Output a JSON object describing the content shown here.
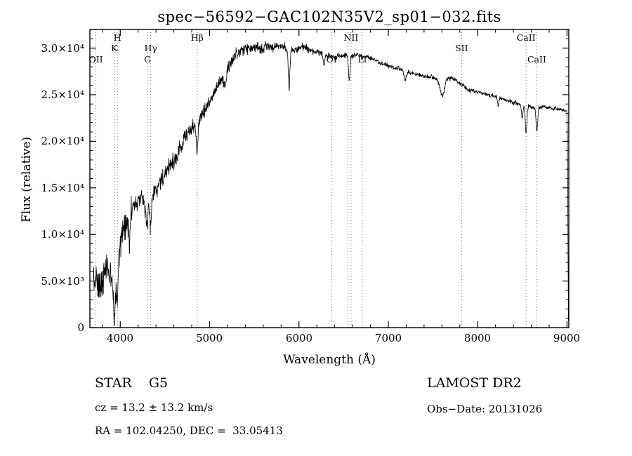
{
  "title": "spec−56592−GAC102N35V2_sp01−032.fits",
  "xlabel": "Wavelength (Å)",
  "ylabel": "Flux (relative)",
  "annotations": {
    "object_class": "STAR    G5",
    "survey": "LAMOST DR2",
    "cz": "cz = 13.2 ± 13.2 km/s",
    "obs_date": "Obs−Date: 20131026",
    "radec": "RA = 102.04250, DEC =  33.05413"
  },
  "chart_data": {
    "type": "line",
    "title": "spec−56592−GAC102N35V2_sp01−032.fits",
    "xlabel": "Wavelength (Å)",
    "ylabel": "Flux (relative)",
    "xlim": [
      3660,
      9020
    ],
    "ylim": [
      0,
      32000
    ],
    "grid": false,
    "line_color": "#000000",
    "dotted_line_color": "#777777",
    "background": "#ffffff",
    "x_ticks": {
      "values": [
        4000,
        5000,
        6000,
        7000,
        8000,
        9000
      ],
      "labels": [
        "4000",
        "5000",
        "6000",
        "7000",
        "8000",
        "9000"
      ]
    },
    "y_ticks": {
      "values": [
        0,
        5000,
        10000,
        15000,
        20000,
        25000,
        30000
      ],
      "labels": [
        "0",
        "5.0×10³",
        "1.0×10⁴",
        "1.5×10⁴",
        "2.0×10⁴",
        "2.5×10⁴",
        "3.0×10⁴"
      ]
    },
    "spectral_lines": [
      {
        "label": "OII",
        "wl": 3727,
        "row": 3
      },
      {
        "label": "K",
        "wl": 3933,
        "row": 2
      },
      {
        "label": "H",
        "wl": 3968,
        "row": 1
      },
      {
        "label": "G",
        "wl": 4305,
        "row": 3
      },
      {
        "label": "Hγ",
        "wl": 4341,
        "row": 2
      },
      {
        "label": "Hβ",
        "wl": 4861,
        "row": 1
      },
      {
        "label": "OI",
        "wl": 6365,
        "row": 3
      },
      {
        "label": "NII",
        "wl": 6583,
        "row": 1
      },
      {
        "label": "Li",
        "wl": 6708,
        "row": 3
      },
      {
        "label": "SII",
        "wl": 7820,
        "row": 2
      },
      {
        "label": "CaII",
        "wl": 8542,
        "row": 1
      },
      {
        "label": "CaII",
        "wl": 8662,
        "row": 3
      }
    ],
    "extra_dotted_lines": [
      6548
    ],
    "continuum_points": [
      [
        3700,
        4600
      ],
      [
        3730,
        5400
      ],
      [
        3760,
        3900
      ],
      [
        3790,
        4600
      ],
      [
        3820,
        5800
      ],
      [
        3850,
        6600
      ],
      [
        3880,
        5400
      ],
      [
        3910,
        5000
      ],
      [
        3940,
        4600
      ],
      [
        3960,
        5200
      ],
      [
        3985,
        7200
      ],
      [
        4010,
        9800
      ],
      [
        4040,
        10800
      ],
      [
        4080,
        11600
      ],
      [
        4120,
        12300
      ],
      [
        4160,
        12900
      ],
      [
        4200,
        13500
      ],
      [
        4250,
        14000
      ],
      [
        4300,
        13600
      ],
      [
        4360,
        14400
      ],
      [
        4420,
        15400
      ],
      [
        4480,
        16300
      ],
      [
        4540,
        17000
      ],
      [
        4600,
        17900
      ],
      [
        4660,
        19000
      ],
      [
        4720,
        20300
      ],
      [
        4780,
        21200
      ],
      [
        4840,
        21700
      ],
      [
        4900,
        22500
      ],
      [
        4960,
        23600
      ],
      [
        5020,
        24600
      ],
      [
        5080,
        25800
      ],
      [
        5140,
        26800
      ],
      [
        5200,
        27800
      ],
      [
        5260,
        28800
      ],
      [
        5320,
        29600
      ],
      [
        5380,
        29900
      ],
      [
        5440,
        30000
      ],
      [
        5500,
        30100
      ],
      [
        5560,
        29900
      ],
      [
        5620,
        30000
      ],
      [
        5680,
        30100
      ],
      [
        5740,
        30200
      ],
      [
        5800,
        30300
      ],
      [
        5860,
        30000
      ],
      [
        5920,
        29800
      ],
      [
        5980,
        30000
      ],
      [
        6040,
        30100
      ],
      [
        6100,
        29900
      ],
      [
        6160,
        29700
      ],
      [
        6220,
        29500
      ],
      [
        6280,
        29300
      ],
      [
        6340,
        29100
      ],
      [
        6400,
        29000
      ],
      [
        6460,
        29200
      ],
      [
        6520,
        29300
      ],
      [
        6580,
        29200
      ],
      [
        6640,
        29300
      ],
      [
        6700,
        29100
      ],
      [
        6760,
        29000
      ],
      [
        6820,
        28900
      ],
      [
        6880,
        28600
      ],
      [
        6940,
        28300
      ],
      [
        7000,
        28100
      ],
      [
        7060,
        27900
      ],
      [
        7120,
        27800
      ],
      [
        7180,
        27600
      ],
      [
        7240,
        27400
      ],
      [
        7300,
        27200
      ],
      [
        7360,
        27100
      ],
      [
        7420,
        27000
      ],
      [
        7480,
        26900
      ],
      [
        7540,
        26700
      ],
      [
        7600,
        26500
      ],
      [
        7660,
        26800
      ],
      [
        7720,
        26700
      ],
      [
        7780,
        26400
      ],
      [
        7840,
        26000
      ],
      [
        7900,
        25500
      ],
      [
        7960,
        25400
      ],
      [
        8020,
        25300
      ],
      [
        8080,
        25100
      ],
      [
        8140,
        24900
      ],
      [
        8200,
        24800
      ],
      [
        8260,
        24600
      ],
      [
        8320,
        24400
      ],
      [
        8380,
        24200
      ],
      [
        8440,
        24100
      ],
      [
        8500,
        23900
      ],
      [
        8560,
        23800
      ],
      [
        8620,
        23600
      ],
      [
        8680,
        23600
      ],
      [
        8740,
        23700
      ],
      [
        8800,
        23600
      ],
      [
        8860,
        23500
      ],
      [
        8920,
        23400
      ],
      [
        8960,
        23300
      ],
      [
        9000,
        23200
      ],
      [
        9006,
        19000
      ],
      [
        9012,
        7000
      ],
      [
        9016,
        700
      ]
    ],
    "absorption_features": [
      {
        "center": 3933,
        "sigma": 8,
        "depth": 3800
      },
      {
        "center": 3968,
        "sigma": 8,
        "depth": 3200
      },
      {
        "center": 4101,
        "sigma": 9,
        "depth": 2600
      },
      {
        "center": 4300,
        "sigma": 14,
        "depth": 2800
      },
      {
        "center": 4341,
        "sigma": 9,
        "depth": 3000
      },
      {
        "center": 4861,
        "sigma": 10,
        "depth": 3000
      },
      {
        "center": 5175,
        "sigma": 12,
        "depth": 1600
      },
      {
        "center": 5890,
        "sigma": 9,
        "depth": 4200
      },
      {
        "center": 6280,
        "sigma": 8,
        "depth": 1200
      },
      {
        "center": 6563,
        "sigma": 9,
        "depth": 2600
      },
      {
        "center": 7190,
        "sigma": 14,
        "depth": 900
      },
      {
        "center": 7605,
        "sigma": 22,
        "depth": 1700
      },
      {
        "center": 8230,
        "sigma": 8,
        "depth": 900
      },
      {
        "center": 8498,
        "sigma": 8,
        "depth": 1500
      },
      {
        "center": 8542,
        "sigma": 9,
        "depth": 2900
      },
      {
        "center": 8662,
        "sigma": 9,
        "depth": 2600
      }
    ],
    "noise_profile": [
      [
        3700,
        1700
      ],
      [
        3850,
        1600
      ],
      [
        4000,
        1400
      ],
      [
        4200,
        1250
      ],
      [
        4500,
        1000
      ],
      [
        4800,
        800
      ],
      [
        5100,
        650
      ],
      [
        5400,
        700
      ],
      [
        5800,
        450
      ],
      [
        6200,
        380
      ],
      [
        6600,
        330
      ],
      [
        7000,
        280
      ],
      [
        7400,
        260
      ],
      [
        7700,
        300
      ],
      [
        8000,
        240
      ],
      [
        8400,
        230
      ],
      [
        8800,
        260
      ],
      [
        9000,
        180
      ],
      [
        9016,
        80
      ]
    ]
  }
}
